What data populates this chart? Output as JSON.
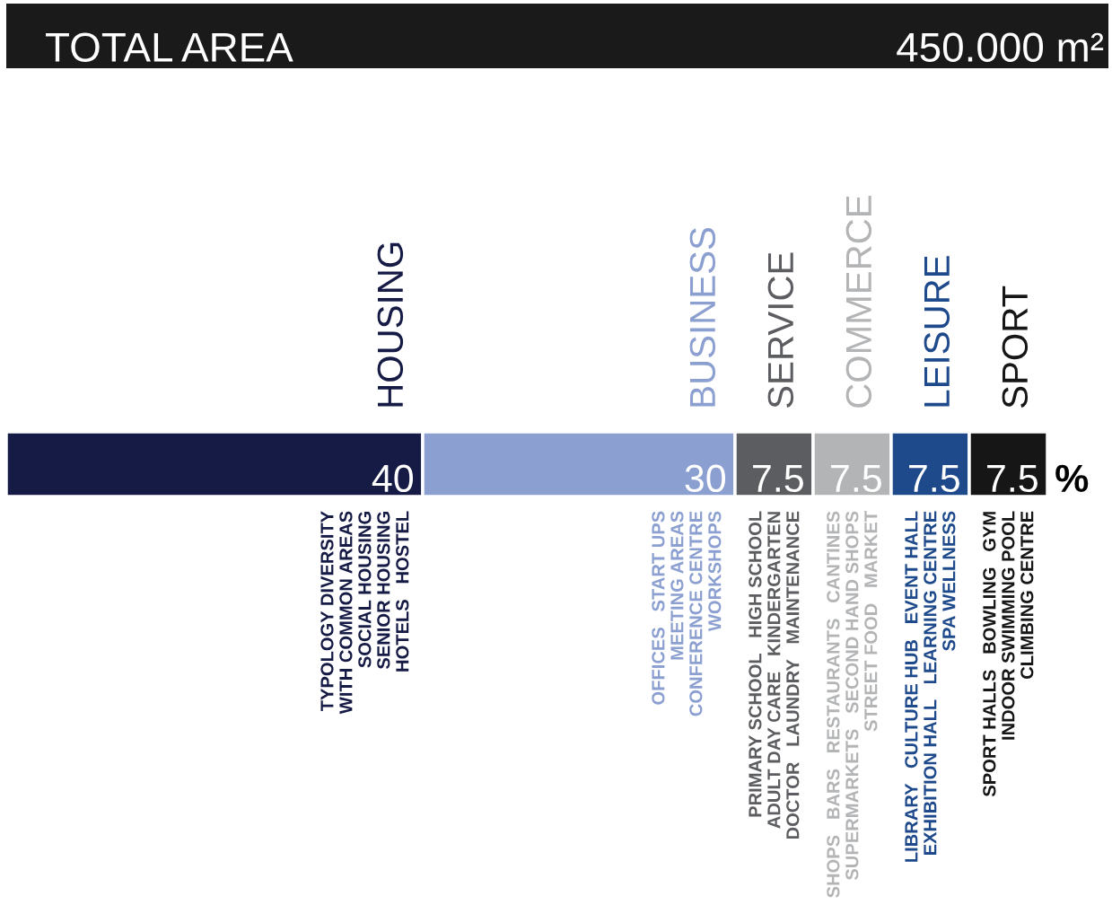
{
  "chart_data": {
    "type": "bar",
    "orientation": "horizontal",
    "stacked": true,
    "title": "TOTAL AREA",
    "subtitle": "450.000 m²",
    "categories": [
      null
    ],
    "series": [
      {
        "name": "HOUSING",
        "color": "#161b45",
        "values": [
          40
        ]
      },
      {
        "name": "BUSINESS",
        "color": "#8b9fd0",
        "values": [
          30
        ]
      },
      {
        "name": "SERVICE",
        "color": "#5c5d60",
        "values": [
          7.5
        ]
      },
      {
        "name": "COMMERCE",
        "color": "#b3b4b6",
        "values": [
          7.5
        ]
      },
      {
        "name": "LEISURE",
        "color": "#1e4a8c",
        "values": [
          7.5
        ]
      },
      {
        "name": "SPORT",
        "color": "#161616",
        "values": [
          7.5
        ]
      }
    ],
    "xlim": [
      0,
      100
    ],
    "data_labels": true,
    "annotations": [
      "TYPOLOGY DIVERSITY\nWITH COMMON AREAS\nSOCIAL HOUSING\nSENIOR HOUSING\nHOTELS   HOSTEL",
      "OFFICES   START UPS\nMEETING AREAS\nCONFERENCE CENTRE\nWORKSHOPS",
      "PRIMARY SCHOOL   HIGH SCHOOL\nADULT DAY CARE   KINDERGARTEN\nDOCTOR   LAUNDRY   MAINTENANCE",
      "SHOPS   BARS   RESTAURANTS   CANTINES\nSUPERMARKETS   SECOND HAND SHOPS\nSTREET FOOD   MARKET",
      "LIBRARY   CULTURE HUB   EVENT HALL\nEXHIBITION HALL   LEARNING CENTRE\nSPA WELLNESS",
      "SPORT HALLS   BOWLING   GYM\nINDOOR SWIMMING POOL\nCLIMBING CENTRE",
      "%"
    ]
  }
}
